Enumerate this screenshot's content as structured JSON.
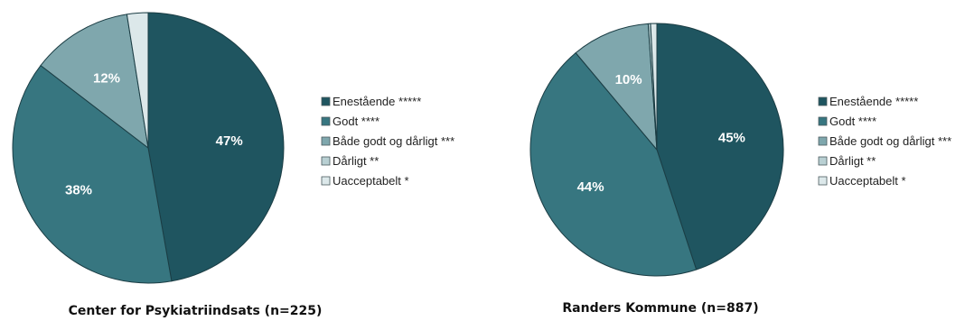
{
  "chart_data": [
    {
      "type": "pie",
      "title": "Center for Psykiatriindsats (n=225)",
      "categories": [
        "Enestående *****",
        "Godt ****",
        "Både godt og dårligt ***",
        "Dårligt **",
        "Uacceptabelt *"
      ],
      "values": [
        47,
        38,
        12,
        0,
        2.5
      ],
      "data_labels": [
        "47%",
        "38%",
        "12%",
        "",
        ""
      ],
      "legend_position": "right"
    },
    {
      "type": "pie",
      "title": "Randers Kommune (n=887)",
      "categories": [
        "Enestående *****",
        "Godt ****",
        "Både godt og dårligt ***",
        "Dårligt **",
        "Uacceptabelt *"
      ],
      "values": [
        45,
        44,
        10,
        0.3,
        0.8
      ],
      "data_labels": [
        "45%",
        "44%",
        "10%",
        "",
        ""
      ],
      "legend_position": "right"
    }
  ],
  "colors": {
    "Enestående *****": "#1f5560",
    "Godt ****": "#377680",
    "Både godt og dårligt ***": "#7fa7ad",
    "Dårligt **": "#b9d0d3",
    "Uacceptabelt *": "#dce8ea"
  },
  "slice_border_color": "#1b3d44"
}
